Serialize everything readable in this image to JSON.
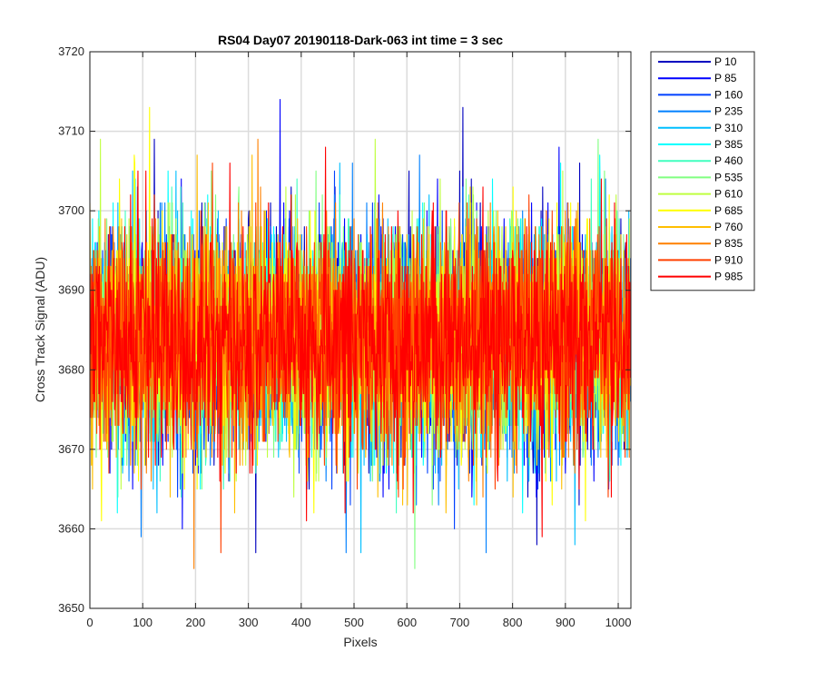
{
  "chart_data": {
    "type": "line",
    "title": "RS04 Day07 20190118-Dark-063 int time = 3 sec",
    "xlabel": "Pixels",
    "ylabel": "Cross Track Signal (ADU)",
    "xlim": [
      0,
      1024
    ],
    "ylim": [
      3650,
      3720
    ],
    "xticks": [
      0,
      100,
      200,
      300,
      400,
      500,
      600,
      700,
      800,
      900,
      1000
    ],
    "yticks": [
      3650,
      3660,
      3670,
      3680,
      3690,
      3700,
      3710,
      3720
    ],
    "grid": true,
    "legend_position": "outside-top-right",
    "noise_model": {
      "mean": 3684,
      "std": 7,
      "min": 3655,
      "max": 3714,
      "points_per_series": 1024
    },
    "series": [
      {
        "name": "P 10",
        "color": "#0000bf",
        "spikes": [
          {
            "x": 706,
            "y": 3713
          },
          {
            "x": 846,
            "y": 3658
          }
        ]
      },
      {
        "name": "P 85",
        "color": "#0000ff",
        "spikes": [
          {
            "x": 360,
            "y": 3714
          },
          {
            "x": 175,
            "y": 3660
          }
        ]
      },
      {
        "name": "P 160",
        "color": "#0040ff",
        "spikes": [
          {
            "x": 690,
            "y": 3660
          }
        ]
      },
      {
        "name": "P 235",
        "color": "#0080ff",
        "spikes": [
          {
            "x": 485,
            "y": 3657
          },
          {
            "x": 750,
            "y": 3657
          }
        ]
      },
      {
        "name": "P 310",
        "color": "#00bfff",
        "spikes": [
          {
            "x": 513,
            "y": 3657
          },
          {
            "x": 918,
            "y": 3658
          }
        ]
      },
      {
        "name": "P 385",
        "color": "#00ffff",
        "spikes": [
          {
            "x": 52,
            "y": 3662
          }
        ]
      },
      {
        "name": "P 460",
        "color": "#40ffbf",
        "spikes": [
          {
            "x": 580,
            "y": 3662
          }
        ]
      },
      {
        "name": "P 535",
        "color": "#80ff80",
        "spikes": [
          {
            "x": 615,
            "y": 3655
          },
          {
            "x": 962,
            "y": 3709
          }
        ]
      },
      {
        "name": "P 610",
        "color": "#bfff40",
        "spikes": [
          {
            "x": 20,
            "y": 3709
          },
          {
            "x": 540,
            "y": 3709
          }
        ]
      },
      {
        "name": "P 685",
        "color": "#ffff00",
        "spikes": [
          {
            "x": 113,
            "y": 3713
          }
        ]
      },
      {
        "name": "P 760",
        "color": "#ffbf00",
        "spikes": [
          {
            "x": 203,
            "y": 3707
          }
        ]
      },
      {
        "name": "P 835",
        "color": "#ff8000",
        "spikes": [
          {
            "x": 197,
            "y": 3655
          },
          {
            "x": 318,
            "y": 3709
          }
        ]
      },
      {
        "name": "P 910",
        "color": "#ff4000",
        "spikes": [
          {
            "x": 248,
            "y": 3657
          }
        ]
      },
      {
        "name": "P 985",
        "color": "#ff0000",
        "spikes": [
          {
            "x": 410,
            "y": 3661
          },
          {
            "x": 265,
            "y": 3706
          }
        ]
      }
    ]
  }
}
